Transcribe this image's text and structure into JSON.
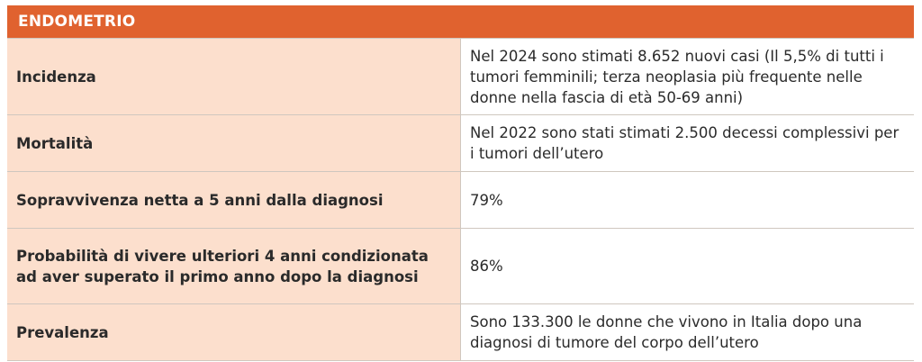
{
  "table": {
    "header": "ENDOMETRIO",
    "rows": [
      {
        "label": "Incidenza",
        "value": "Nel 2024 sono stimati 8.652 nuovi casi (Il 5,5% di tutti i tumori femminili; terza neoplasia più frequente nelle donne nella fascia di età 50-69 anni)"
      },
      {
        "label": "Mortalità",
        "value": "Nel 2022 sono stati stimati 2.500 decessi complessivi per i tumori dell’utero"
      },
      {
        "label": "Sopravvivenza netta a 5 anni dalla diagnosi",
        "value": "79%"
      },
      {
        "label": "Probabilità di vivere ulteriori 4 anni condizionata ad aver superato il primo anno dopo la diagnosi",
        "value": "86%"
      },
      {
        "label": "Prevalenza",
        "value": "Sono 133.300 le donne che vivono in Italia dopo una diagnosi di tumore del corpo dell’utero"
      }
    ]
  }
}
